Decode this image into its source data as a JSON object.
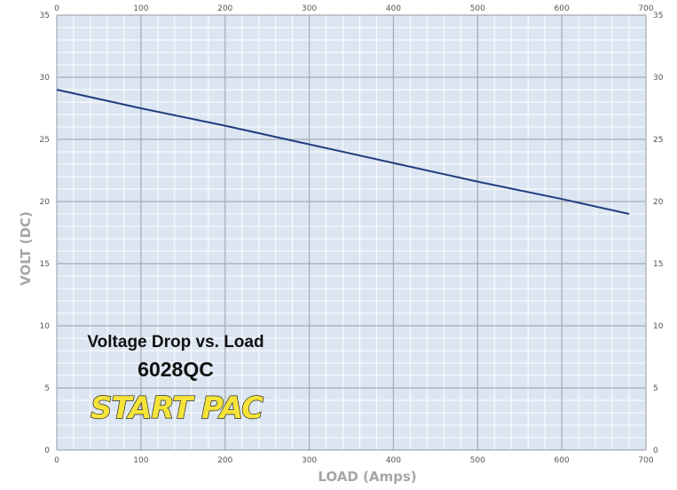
{
  "chart_data": {
    "type": "line",
    "title": "",
    "xlabel": "LOAD (Amps)",
    "ylabel": "VOLT (DC)",
    "xlim": [
      0,
      700
    ],
    "ylim": [
      0,
      35
    ],
    "x_ticks": [
      0,
      100,
      200,
      300,
      400,
      500,
      600,
      700
    ],
    "y_ticks": [
      0,
      5,
      10,
      15,
      20,
      25,
      30,
      35
    ],
    "x_axis_mirrored_top": true,
    "y_axis_mirrored_right": true,
    "grid": true,
    "legend": "none",
    "series": [
      {
        "x": [
          0,
          100,
          200,
          300,
          400,
          500,
          600,
          680
        ],
        "y": [
          29.0,
          27.5,
          26.1,
          24.6,
          23.1,
          21.6,
          20.2,
          19.0
        ],
        "color": "#1f3f80"
      }
    ],
    "annotations": {
      "line1": "Voltage Drop vs. Load",
      "line2": "6028QC",
      "logo": "START PAC"
    }
  },
  "colors": {
    "plot_bg": "#dce6f2",
    "major_grid": "#a5aab3",
    "minor_grid": "#ffffff",
    "logo_fill": "#f5e33a"
  }
}
